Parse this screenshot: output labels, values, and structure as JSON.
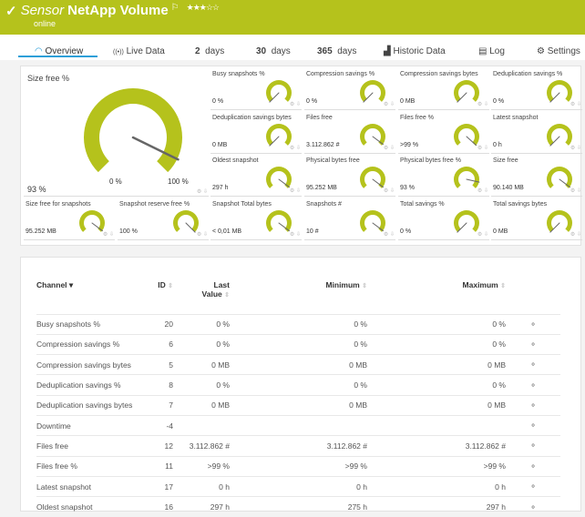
{
  "header": {
    "prefix": "Sensor",
    "title": "NetApp Volume",
    "status": "online",
    "stars": "★★★☆☆",
    "flag_icon": "flag-icon",
    "color": "#b5c21c"
  },
  "tabs": [
    {
      "label": "Overview",
      "icon": "gauge-icon"
    },
    {
      "label": "Live Data",
      "icon": "broadcast-icon"
    },
    {
      "num": "2",
      "label": "days"
    },
    {
      "num": "30",
      "label": "days"
    },
    {
      "num": "365",
      "label": "days"
    },
    {
      "label": "Historic Data",
      "icon": "chart-icon"
    },
    {
      "label": "Log",
      "icon": "log-icon"
    },
    {
      "label": "Settings",
      "icon": "gear-icon"
    }
  ],
  "main_gauge": {
    "title": "Size free %",
    "value": "93 %",
    "fraction": 0.93,
    "min_label": "0 %",
    "max_label": "100 %"
  },
  "gauges": [
    {
      "title": "Busy snapshots %",
      "value": "0 %",
      "fraction": 0
    },
    {
      "title": "Compression savings %",
      "value": "0 %",
      "fraction": 0
    },
    {
      "title": "Compression savings bytes",
      "value": "0 MB",
      "fraction": 0
    },
    {
      "title": "Deduplication savings %",
      "value": "0 %",
      "fraction": 0
    },
    {
      "title": "Deduplication savings bytes",
      "value": "0 MB",
      "fraction": 0
    },
    {
      "title": "Files free",
      "value": "3.112.862 #",
      "fraction": 0.97
    },
    {
      "title": "Files free %",
      "value": ">99 %",
      "fraction": 0.99
    },
    {
      "title": "Latest snapshot",
      "value": "0 h",
      "fraction": 0
    },
    {
      "title": "Oldest snapshot",
      "value": "297 h",
      "fraction": 0.97
    },
    {
      "title": "Physical bytes free",
      "value": "95.252 MB",
      "fraction": 0.97
    },
    {
      "title": "Physical bytes free %",
      "value": "93 %",
      "fraction": 0.88
    },
    {
      "title": "Size free",
      "value": "90.140 MB",
      "fraction": 0.97
    },
    {
      "title": "Snapshot Total bytes",
      "value": "< 0,01 MB",
      "fraction": 0.97
    },
    {
      "title": "Snapshots #",
      "value": "10 #",
      "fraction": 0.97
    },
    {
      "title": "Total savings %",
      "value": "0 %",
      "fraction": 0
    },
    {
      "title": "Total savings bytes",
      "value": "0 MB",
      "fraction": 0
    },
    {
      "title": "Size free for snapshots",
      "value": "95.252 MB",
      "fraction": 0.97
    },
    {
      "title": "Snapshot reserve free %",
      "value": "100 %",
      "fraction": 1
    }
  ],
  "table": {
    "headers": {
      "channel": "Channel ▾",
      "id": "ID",
      "last1": "Last",
      "last2": "Value",
      "min": "Minimum",
      "max": "Maximum"
    },
    "rows": [
      [
        "Busy snapshots %",
        "20",
        "0 %",
        "0 %",
        "0 %"
      ],
      [
        "Compression savings %",
        "6",
        "0 %",
        "0 %",
        "0 %"
      ],
      [
        "Compression savings bytes",
        "5",
        "0 MB",
        "0 MB",
        "0 MB"
      ],
      [
        "Deduplication savings %",
        "8",
        "0 %",
        "0 %",
        "0 %"
      ],
      [
        "Deduplication savings bytes",
        "7",
        "0 MB",
        "0 MB",
        "0 MB"
      ],
      [
        "Downtime",
        "-4",
        "",
        "",
        ""
      ],
      [
        "Files free",
        "12",
        "3.112.862 #",
        "3.112.862 #",
        "3.112.862 #"
      ],
      [
        "Files free %",
        "11",
        ">99 %",
        ">99 %",
        ">99 %"
      ],
      [
        "Latest snapshot",
        "17",
        "0 h",
        "0 h",
        "0 h"
      ],
      [
        "Oldest snapshot",
        "16",
        "297 h",
        "275 h",
        "297 h"
      ]
    ]
  }
}
